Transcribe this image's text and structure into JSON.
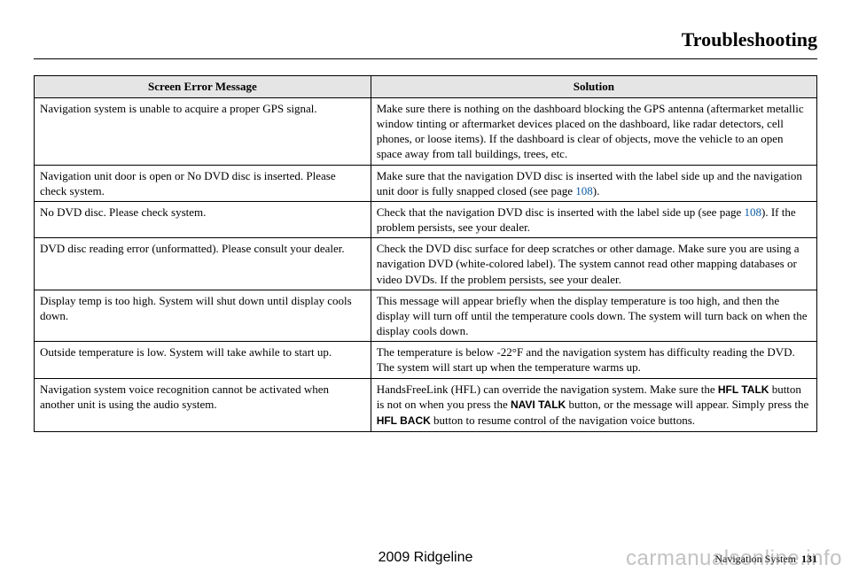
{
  "title": "Troubleshooting",
  "footer": {
    "model": "2009  Ridgeline",
    "section": "Navigation System",
    "page": "131"
  },
  "watermark": "carmanualsonline.info",
  "table": {
    "headers": {
      "msg": "Screen Error Message",
      "sol": "Solution"
    },
    "rows": [
      {
        "msg": "Navigation system is unable to acquire a proper GPS signal.",
        "sol": "Make sure there is nothing on the dashboard blocking the GPS antenna (aftermarket metallic window tinting or aftermarket devices placed on the dashboard, like radar detectors, cell phones, or loose items). If the dashboard is clear of objects, move the vehicle to an open space away from tall buildings, trees, etc."
      },
      {
        "msg": "Navigation unit door is open or No DVD disc is inserted. Please check system.",
        "sol_pre": "Make sure that the navigation DVD disc is inserted with the label side up and the navigation unit door is fully snapped closed (see page ",
        "sol_link": "108",
        "sol_post": ")."
      },
      {
        "msg": "No DVD disc. Please check system.",
        "sol_pre": "Check that the navigation DVD disc is inserted with the label side up (see page ",
        "sol_link": "108",
        "sol_post": "). If the problem persists, see your dealer."
      },
      {
        "msg": "DVD disc reading error (unformatted). Please consult your dealer.",
        "sol": "Check the DVD disc surface for deep scratches or other damage. Make sure you are using a navigation DVD (white-colored label). The system cannot read other mapping databases or video DVDs. If the problem persists, see your dealer."
      },
      {
        "msg": "Display temp is too high. System will shut down until display cools down.",
        "sol": "This message will appear briefly when the display temperature is too high, and then the display will turn off until the temperature cools down. The system will turn back on when the display cools down."
      },
      {
        "msg": "Outside temperature is low. System will take awhile to start up.",
        "sol": "The temperature is below -22°F and the navigation system has difficulty reading the DVD. The system will start up when the temperature warms up."
      },
      {
        "msg": "Navigation system voice recognition cannot be activated when another unit is using the audio system.",
        "sol_parts": {
          "p1": "HandsFreeLink (HFL) can override the navigation system. Make sure the ",
          "b1": "HFL TALK",
          "p2": " button is not on when you press the ",
          "b2": "NAVI TALK",
          "p3": " button, or the message will appear. Simply press the ",
          "b3": "HFL BACK",
          "p4": " button to resume control of the navigation voice buttons."
        }
      }
    ]
  }
}
